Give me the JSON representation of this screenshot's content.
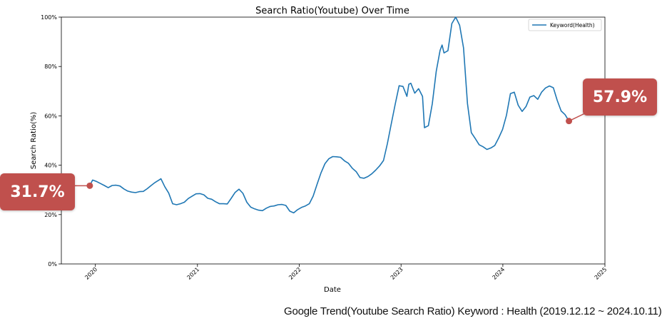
{
  "chart_data": {
    "type": "line",
    "title": "Search Ratio(Youtube) Over Time",
    "xlabel": "Date",
    "ylabel": "Search Ratio(%)",
    "ylim": [
      0,
      100
    ],
    "yticks": [
      "0%",
      "20%",
      "40%",
      "60%",
      "80%",
      "100%"
    ],
    "xticks": [
      "2020",
      "2021",
      "2022",
      "2023",
      "2024",
      "2025"
    ],
    "xlim": [
      "2019-09-01",
      "2025-01-01"
    ],
    "legend": "top-right",
    "grid": false,
    "series": [
      {
        "name": "Keyword(Health)",
        "color": "#1f77b4",
        "points": [
          [
            "2019-12-12",
            31.7
          ],
          [
            "2019-12-22",
            34.0
          ],
          [
            "2020-01-05",
            33.4
          ],
          [
            "2020-01-19",
            32.6
          ],
          [
            "2020-02-02",
            31.8
          ],
          [
            "2020-02-16",
            30.9
          ],
          [
            "2020-03-01",
            31.8
          ],
          [
            "2020-03-15",
            31.9
          ],
          [
            "2020-03-29",
            31.6
          ],
          [
            "2020-04-12",
            30.4
          ],
          [
            "2020-04-26",
            29.5
          ],
          [
            "2020-05-10",
            29.1
          ],
          [
            "2020-05-24",
            28.9
          ],
          [
            "2020-06-07",
            29.3
          ],
          [
            "2020-06-21",
            29.4
          ],
          [
            "2020-07-05",
            30.5
          ],
          [
            "2020-07-19",
            31.8
          ],
          [
            "2020-08-02",
            33.0
          ],
          [
            "2020-08-16",
            34.0
          ],
          [
            "2020-08-23",
            34.5
          ],
          [
            "2020-09-06",
            31.3
          ],
          [
            "2020-09-20",
            28.7
          ],
          [
            "2020-10-04",
            24.4
          ],
          [
            "2020-10-18",
            24.0
          ],
          [
            "2020-11-01",
            24.4
          ],
          [
            "2020-11-15",
            25.0
          ],
          [
            "2020-11-29",
            26.5
          ],
          [
            "2020-12-13",
            27.5
          ],
          [
            "2020-12-27",
            28.4
          ],
          [
            "2021-01-10",
            28.5
          ],
          [
            "2021-01-24",
            28.0
          ],
          [
            "2021-02-07",
            26.6
          ],
          [
            "2021-02-21",
            26.2
          ],
          [
            "2021-03-07",
            25.2
          ],
          [
            "2021-03-21",
            24.4
          ],
          [
            "2021-04-04",
            24.4
          ],
          [
            "2021-04-18",
            24.3
          ],
          [
            "2021-05-02",
            26.6
          ],
          [
            "2021-05-16",
            29.0
          ],
          [
            "2021-05-30",
            30.3
          ],
          [
            "2021-06-13",
            28.6
          ],
          [
            "2021-06-27",
            25.0
          ],
          [
            "2021-07-11",
            23.0
          ],
          [
            "2021-07-25",
            22.3
          ],
          [
            "2021-08-08",
            21.8
          ],
          [
            "2021-08-22",
            21.6
          ],
          [
            "2021-09-05",
            22.6
          ],
          [
            "2021-09-19",
            23.3
          ],
          [
            "2021-10-03",
            23.5
          ],
          [
            "2021-10-17",
            24.0
          ],
          [
            "2021-10-31",
            24.1
          ],
          [
            "2021-11-14",
            23.7
          ],
          [
            "2021-11-28",
            21.4
          ],
          [
            "2021-12-12",
            20.7
          ],
          [
            "2021-12-26",
            22.0
          ],
          [
            "2022-01-09",
            22.9
          ],
          [
            "2022-01-23",
            23.5
          ],
          [
            "2022-02-06",
            24.4
          ],
          [
            "2022-02-20",
            27.5
          ],
          [
            "2022-03-06",
            32.3
          ],
          [
            "2022-03-20",
            36.9
          ],
          [
            "2022-04-03",
            40.6
          ],
          [
            "2022-04-17",
            42.6
          ],
          [
            "2022-05-01",
            43.5
          ],
          [
            "2022-05-15",
            43.4
          ],
          [
            "2022-05-29",
            43.2
          ],
          [
            "2022-06-12",
            41.8
          ],
          [
            "2022-06-26",
            40.8
          ],
          [
            "2022-07-10",
            38.8
          ],
          [
            "2022-07-24",
            37.4
          ],
          [
            "2022-08-07",
            35.0
          ],
          [
            "2022-08-21",
            34.7
          ],
          [
            "2022-09-04",
            35.4
          ],
          [
            "2022-09-18",
            36.5
          ],
          [
            "2022-10-02",
            38.0
          ],
          [
            "2022-10-16",
            39.7
          ],
          [
            "2022-10-30",
            41.9
          ],
          [
            "2022-11-13",
            48.7
          ],
          [
            "2022-11-27",
            56.8
          ],
          [
            "2022-12-11",
            64.7
          ],
          [
            "2022-12-25",
            72.2
          ],
          [
            "2023-01-08",
            71.9
          ],
          [
            "2023-01-22",
            67.9
          ],
          [
            "2023-01-29",
            72.8
          ],
          [
            "2023-02-05",
            73.2
          ],
          [
            "2023-02-19",
            69.2
          ],
          [
            "2023-03-05",
            71.0
          ],
          [
            "2023-03-19",
            67.9
          ],
          [
            "2023-03-26",
            55.2
          ],
          [
            "2023-04-09",
            56.0
          ],
          [
            "2023-04-23",
            64.9
          ],
          [
            "2023-05-07",
            78.0
          ],
          [
            "2023-05-21",
            86.5
          ],
          [
            "2023-05-28",
            88.7
          ],
          [
            "2023-06-04",
            85.5
          ],
          [
            "2023-06-18",
            86.4
          ],
          [
            "2023-07-02",
            97.4
          ],
          [
            "2023-07-16",
            100.0
          ],
          [
            "2023-07-30",
            96.7
          ],
          [
            "2023-08-13",
            87.5
          ],
          [
            "2023-08-27",
            65.0
          ],
          [
            "2023-09-10",
            53.2
          ],
          [
            "2023-09-24",
            50.8
          ],
          [
            "2023-10-08",
            48.3
          ],
          [
            "2023-10-22",
            47.5
          ],
          [
            "2023-11-05",
            46.4
          ],
          [
            "2023-11-19",
            47.0
          ],
          [
            "2023-12-03",
            48.0
          ],
          [
            "2023-12-17",
            51.0
          ],
          [
            "2023-12-31",
            54.5
          ],
          [
            "2024-01-14",
            60.3
          ],
          [
            "2024-01-28",
            69.0
          ],
          [
            "2024-02-11",
            69.6
          ],
          [
            "2024-02-25",
            64.3
          ],
          [
            "2024-03-10",
            61.8
          ],
          [
            "2024-03-24",
            63.8
          ],
          [
            "2024-04-07",
            67.6
          ],
          [
            "2024-04-21",
            68.2
          ],
          [
            "2024-05-05",
            66.7
          ],
          [
            "2024-05-19",
            69.6
          ],
          [
            "2024-06-02",
            71.3
          ],
          [
            "2024-06-16",
            72.1
          ],
          [
            "2024-06-30",
            71.4
          ],
          [
            "2024-07-14",
            66.3
          ],
          [
            "2024-07-28",
            62.0
          ],
          [
            "2024-08-11",
            60.5
          ],
          [
            "2024-08-18",
            59.2
          ],
          [
            "2024-08-25",
            57.9
          ]
        ]
      }
    ],
    "annotations": {
      "start": {
        "label": "31.7%",
        "date": "2019-12-12",
        "value": 31.7
      },
      "end": {
        "label": "57.9%",
        "date": "2024-08-25",
        "value": 57.9
      }
    },
    "accent_color": "#c0504d",
    "caption": "Google Trend(Youtube Search Ratio) Keyword : Health (2019.12.12 ~ 2024.10.11)"
  }
}
